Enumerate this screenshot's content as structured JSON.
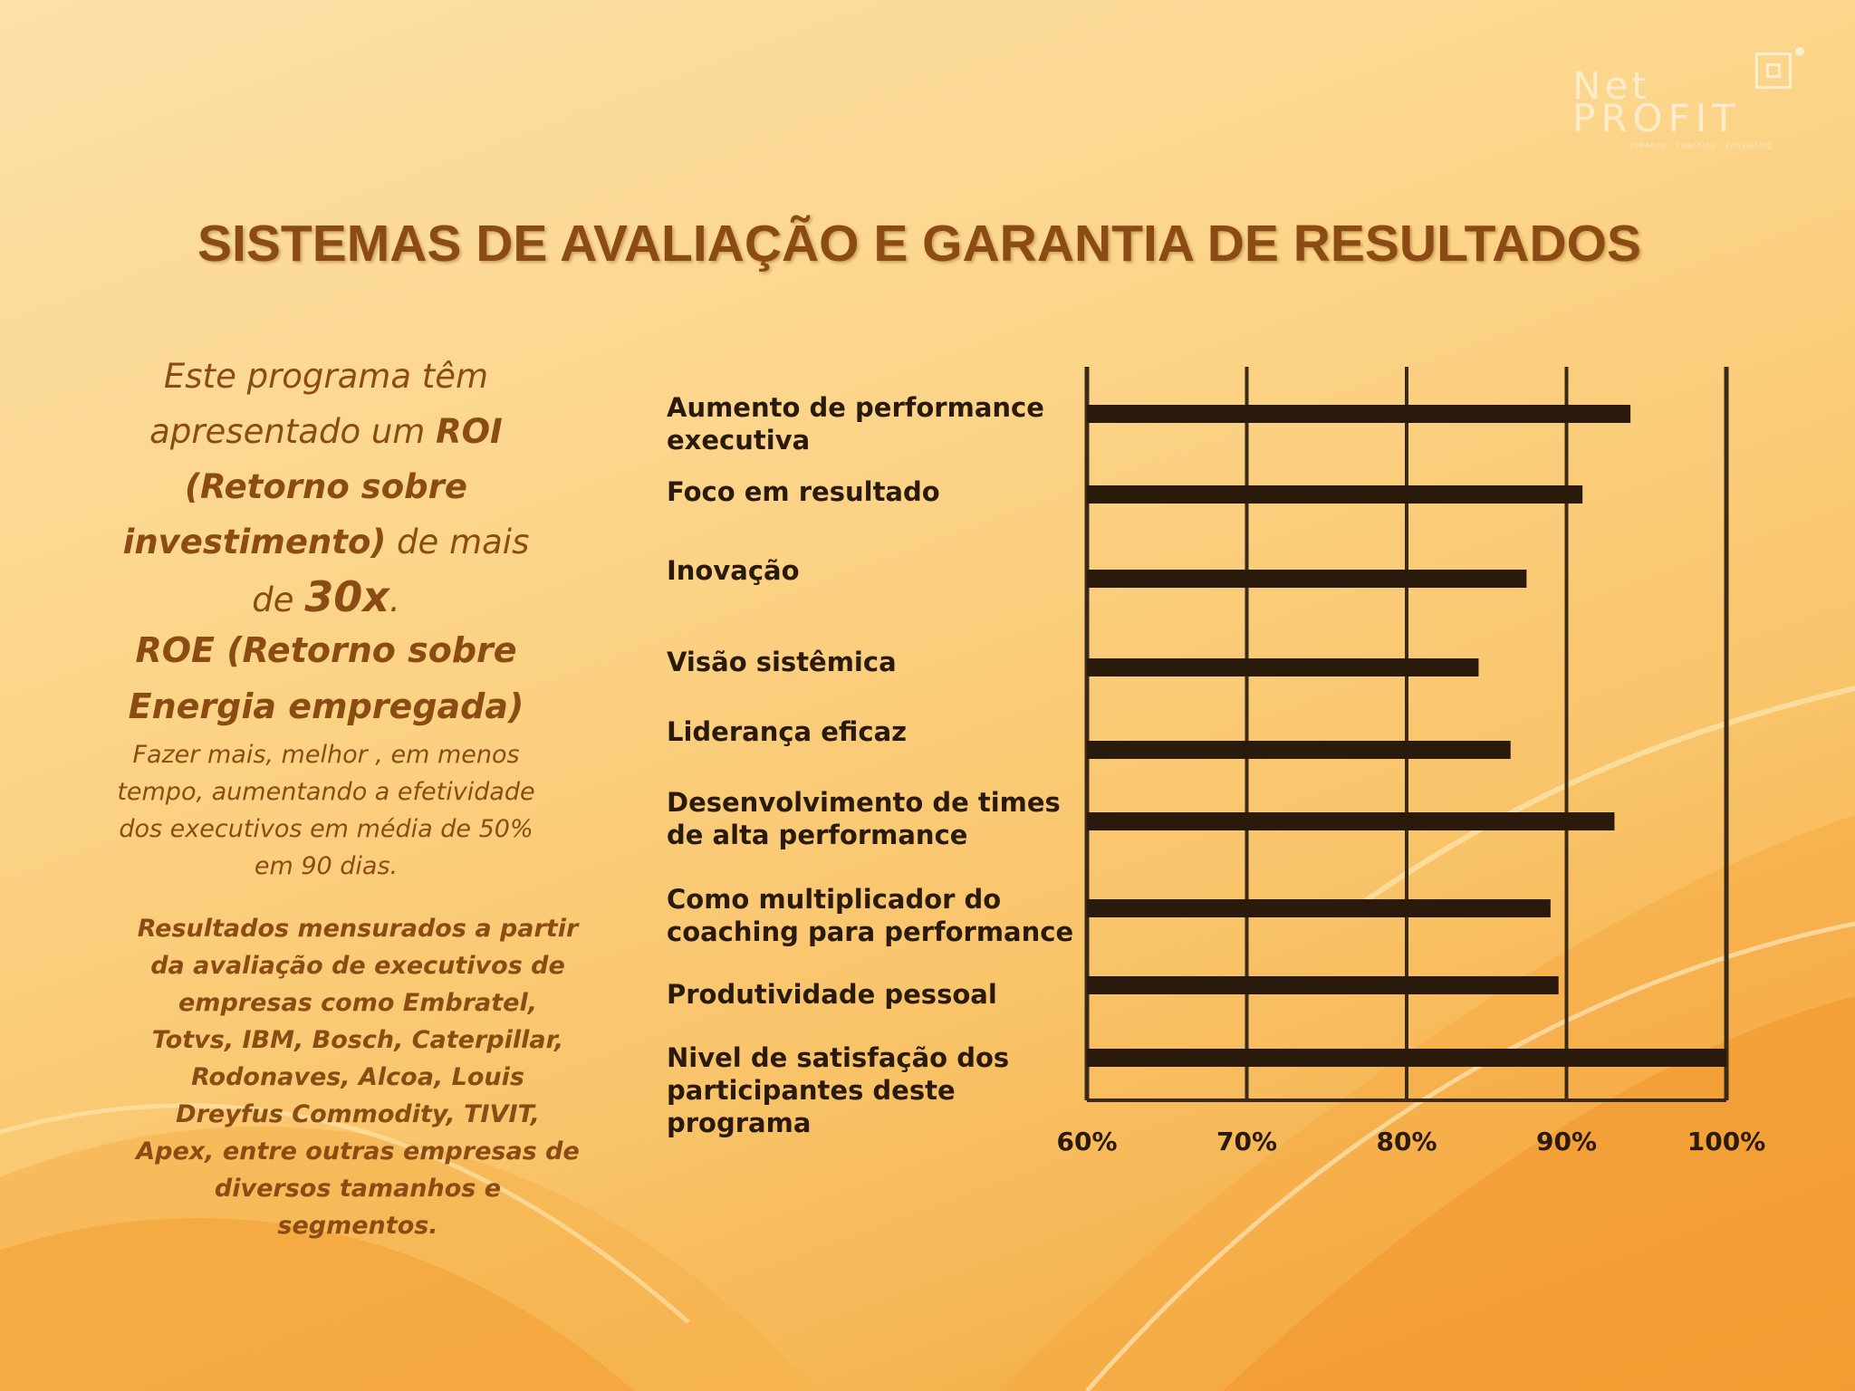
{
  "logo": {
    "line1": "Net",
    "line2": "PROFIT",
    "tagline": "rodando · coaching · consulting"
  },
  "title": "SISTEMAS DE AVALIAÇÃO E GARANTIA DE RESULTADOS",
  "intro": {
    "part1": "Este programa têm apresentado um ",
    "roi": "ROI (Retorno sobre investimento)",
    "part2": " de mais de ",
    "times": "30x",
    "part3": "."
  },
  "roe": "ROE (Retorno sobre Energia empregada)",
  "roe_desc": "Fazer mais, melhor , em menos tempo, aumentando a efetividade dos executivos em média de 50% em 90 dias.",
  "results": "Resultados mensurados a partir da avaliação de executivos de empresas como Embratel, Totvs, IBM, Bosch,  Caterpillar, Rodonaves, Alcoa, Louis Dreyfus Commodity, TIVIT, Apex,  entre outras empresas de diversos tamanhos e segmentos.",
  "colors": {
    "text": "#8b4c14",
    "bar": "#2a1a0c",
    "axis": "#3a2a1a"
  },
  "chart_data": {
    "type": "bar",
    "orientation": "horizontal",
    "categories": [
      "Aumento de performance executiva",
      "Foco em resultado",
      "Inovação",
      "Visão sistêmica",
      "Liderança eficaz",
      "Desenvolvimento de times de alta performance",
      "Como multiplicador do coaching para performance",
      "Produtividade pessoal",
      "Nivel de satisfação dos participantes deste programa"
    ],
    "values": [
      94,
      91,
      87.5,
      84.5,
      86.5,
      93,
      89,
      89.5,
      100
    ],
    "xlim": [
      60,
      100
    ],
    "ticks": [
      "60%",
      "70%",
      "80%",
      "90%",
      "100%"
    ],
    "tick_values": [
      60,
      70,
      80,
      90,
      100
    ],
    "grid": true,
    "title": "",
    "xlabel": "",
    "ylabel": ""
  }
}
